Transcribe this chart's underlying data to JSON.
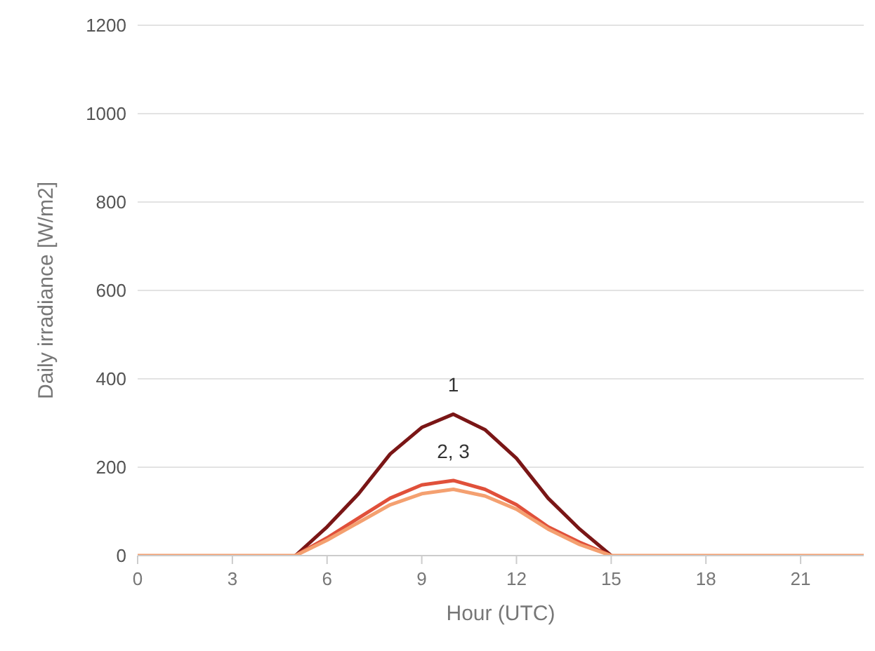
{
  "chart_data": {
    "type": "line",
    "xlabel": "Hour (UTC)",
    "ylabel": "Daily irradiance [W/m2]",
    "x": [
      0,
      1,
      2,
      3,
      4,
      5,
      6,
      7,
      8,
      9,
      10,
      11,
      12,
      13,
      14,
      15,
      16,
      17,
      18,
      19,
      20,
      21,
      22,
      23
    ],
    "series": [
      {
        "color": "#7a1616",
        "values": [
          null,
          null,
          null,
          null,
          null,
          0,
          65,
          140,
          230,
          290,
          320,
          285,
          220,
          130,
          60,
          0,
          null,
          null,
          null,
          null,
          null,
          null,
          null,
          null
        ]
      },
      {
        "color": "#e0503a",
        "values": [
          null,
          null,
          null,
          null,
          null,
          0,
          40,
          85,
          130,
          160,
          170,
          150,
          115,
          65,
          30,
          0,
          null,
          null,
          null,
          null,
          null,
          null,
          null,
          null
        ]
      },
      {
        "color": "#f4a070",
        "values": [
          0,
          0,
          0,
          0,
          0,
          0,
          35,
          75,
          115,
          140,
          150,
          135,
          105,
          60,
          25,
          0,
          0,
          0,
          0,
          0,
          0,
          0,
          0,
          0
        ]
      }
    ],
    "xlim": [
      0,
      23
    ],
    "xticks": [
      0,
      3,
      6,
      9,
      12,
      15,
      18,
      21
    ],
    "ylim": [
      0,
      1200
    ],
    "yticks": [
      0,
      200,
      400,
      600,
      800,
      1000,
      1200
    ],
    "grid": "y",
    "legend": false,
    "marker": "none",
    "line_style": "solid",
    "annotations": [
      "1",
      "2, 3"
    ]
  }
}
